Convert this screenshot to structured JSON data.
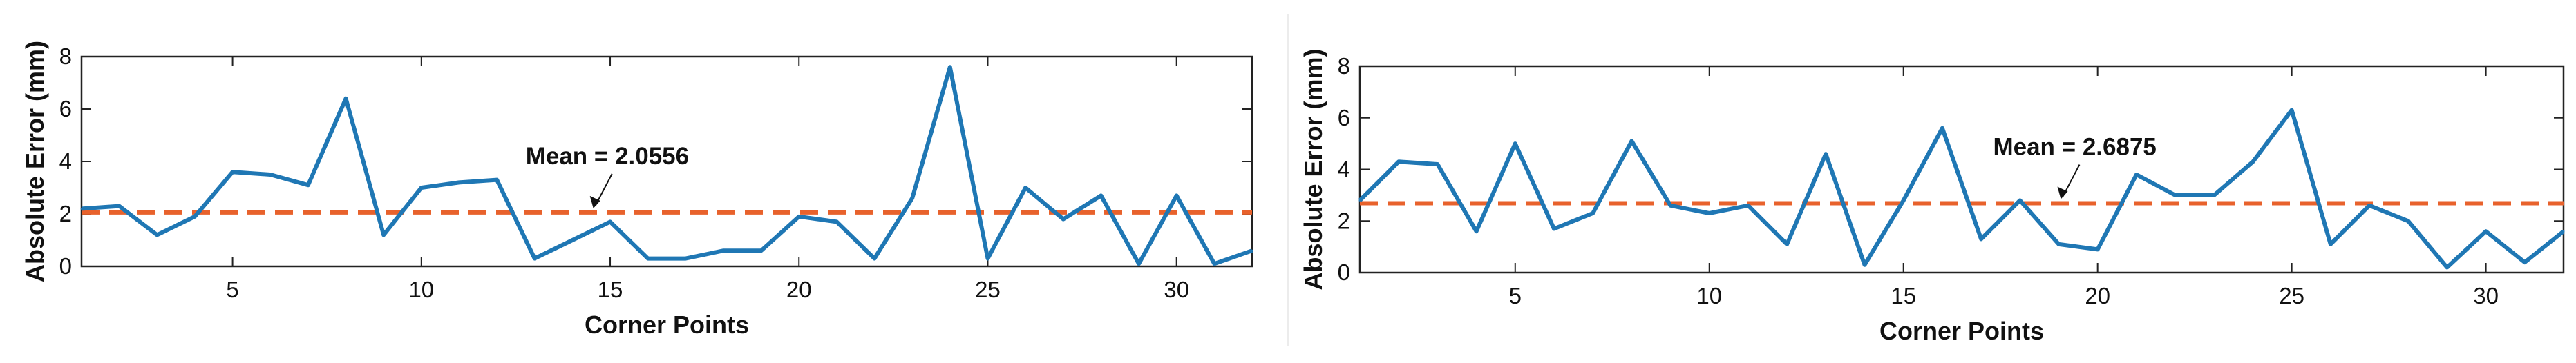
{
  "colors": {
    "line": "#1f77b4",
    "mean_line": "#e8622c",
    "axis": "#222222",
    "grid": "none"
  },
  "chart_data": [
    {
      "type": "line",
      "title": "",
      "xlabel": "Corner Points",
      "ylabel": "Absolute Error (mm)",
      "xlim": [
        1,
        32
      ],
      "ylim": [
        0,
        8
      ],
      "xticks": [
        5,
        10,
        15,
        20,
        25,
        30
      ],
      "yticks": [
        0,
        2,
        4,
        6,
        8
      ],
      "grid": false,
      "x": [
        1,
        2,
        3,
        4,
        5,
        6,
        7,
        8,
        9,
        10,
        11,
        12,
        13,
        14,
        15,
        16,
        17,
        18,
        19,
        20,
        21,
        22,
        23,
        24,
        25,
        26,
        27,
        28,
        29,
        30,
        31,
        32
      ],
      "series": [
        {
          "values": [
            2.2,
            2.3,
            1.2,
            1.9,
            3.6,
            3.5,
            3.1,
            6.4,
            1.2,
            3.0,
            3.2,
            3.3,
            0.3,
            1.0,
            1.7,
            0.3,
            0.3,
            0.6,
            0.6,
            1.9,
            1.7,
            0.3,
            2.6,
            7.6,
            0.3,
            3.0,
            1.8,
            2.7,
            0.1,
            2.7,
            0.1,
            0.6
          ]
        }
      ],
      "mean": 2.0556,
      "annotation": {
        "text": "Mean = 2.0556",
        "x": 14.5
      }
    },
    {
      "type": "line",
      "title": "",
      "xlabel": "Corner Points",
      "ylabel": "Absolute Error (mm)",
      "xlim": [
        1,
        32
      ],
      "ylim": [
        0,
        8
      ],
      "xticks": [
        5,
        10,
        15,
        20,
        25,
        30
      ],
      "yticks": [
        0,
        2,
        4,
        6,
        8
      ],
      "grid": false,
      "x": [
        1,
        2,
        3,
        4,
        5,
        6,
        7,
        8,
        9,
        10,
        11,
        12,
        13,
        14,
        15,
        16,
        17,
        18,
        19,
        20,
        21,
        22,
        23,
        24,
        25,
        26,
        27,
        28,
        29,
        30,
        31,
        32
      ],
      "series": [
        {
          "values": [
            2.8,
            4.3,
            4.2,
            1.6,
            5.0,
            1.7,
            2.3,
            5.1,
            2.6,
            2.3,
            2.6,
            1.1,
            4.6,
            0.3,
            2.8,
            5.6,
            1.3,
            2.8,
            1.1,
            0.9,
            3.8,
            3.0,
            3.0,
            4.3,
            6.3,
            1.1,
            2.6,
            2.0,
            0.2,
            1.6,
            0.4,
            1.6
          ]
        }
      ],
      "mean": 2.6875,
      "annotation": {
        "text": "Mean = 2.6875",
        "x": 19.0
      }
    }
  ]
}
